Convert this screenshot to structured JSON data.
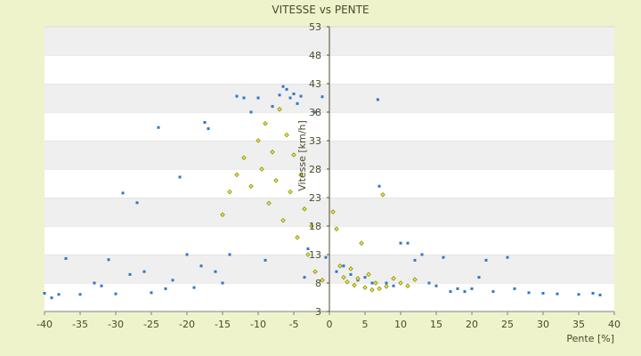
{
  "chart_data": {
    "type": "scatter",
    "title": "VITESSE vs PENTE",
    "xlabel": "Pente [%]",
    "ylabel": "Vitesse [km/h]",
    "xlim": [
      -40,
      40
    ],
    "ylim": [
      3,
      53
    ],
    "x_ticks": [
      "-40",
      "-35",
      "-30",
      "-25",
      "-20",
      "-15",
      "-10",
      "-5",
      "0",
      "5",
      "10",
      "15",
      "20",
      "25",
      "30",
      "35",
      "40"
    ],
    "y_ticks": [
      "3",
      "8",
      "13",
      "18",
      "23",
      "28",
      "33",
      "38",
      "43",
      "48",
      "53"
    ],
    "grid": "horizontal bands",
    "legend": "none",
    "series": [
      {
        "color": "#2e78c8",
        "points": [
          [
            -40,
            6.2
          ],
          [
            -39,
            5.4
          ],
          [
            -38,
            6.0
          ],
          [
            -37,
            12.3
          ],
          [
            -35,
            6.0
          ],
          [
            -33,
            8.0
          ],
          [
            -32,
            7.5
          ],
          [
            -31,
            12.1
          ],
          [
            -30,
            6.1
          ],
          [
            -29,
            23.8
          ],
          [
            -28,
            9.5
          ],
          [
            -27,
            22.1
          ],
          [
            -26,
            10.0
          ],
          [
            -25,
            6.3
          ],
          [
            -24,
            35.3
          ],
          [
            -23,
            7.0
          ],
          [
            -22,
            8.5
          ],
          [
            -21,
            26.6
          ],
          [
            -20,
            13.0
          ],
          [
            -19,
            7.2
          ],
          [
            -18,
            11.0
          ],
          [
            -17.5,
            36.2
          ],
          [
            -17,
            35.1
          ],
          [
            -16,
            10.0
          ],
          [
            -15,
            8.0
          ],
          [
            -14,
            13.0
          ],
          [
            -13,
            40.8
          ],
          [
            -12,
            40.5
          ],
          [
            -11,
            38.0
          ],
          [
            -10,
            40.5
          ],
          [
            -9,
            12.0
          ],
          [
            -8,
            39.0
          ],
          [
            -7,
            41.0
          ],
          [
            -6.5,
            42.5
          ],
          [
            -6,
            42.0
          ],
          [
            -5.5,
            40.5
          ],
          [
            -5,
            41.2
          ],
          [
            -4.5,
            39.5
          ],
          [
            -4,
            40.8
          ],
          [
            -3.5,
            9.0
          ],
          [
            -3,
            14.0
          ],
          [
            -2,
            38.0
          ],
          [
            -1,
            40.7
          ],
          [
            -0.5,
            12.5
          ],
          [
            1,
            10.0
          ],
          [
            2,
            11.0
          ],
          [
            3,
            9.5
          ],
          [
            4,
            8.5
          ],
          [
            5,
            9.0
          ],
          [
            6,
            8.0
          ],
          [
            6.8,
            40.2
          ],
          [
            7,
            25.0
          ],
          [
            8,
            8.0
          ],
          [
            9,
            7.5
          ],
          [
            10,
            15.0
          ],
          [
            11,
            15.0
          ],
          [
            12,
            12.0
          ],
          [
            13,
            13.0
          ],
          [
            14,
            8.0
          ],
          [
            15,
            7.5
          ],
          [
            16,
            12.5
          ],
          [
            17,
            6.5
          ],
          [
            18,
            7.0
          ],
          [
            19,
            6.5
          ],
          [
            20,
            7.0
          ],
          [
            21,
            9.0
          ],
          [
            22,
            12.0
          ],
          [
            23,
            6.5
          ],
          [
            25,
            12.5
          ],
          [
            26,
            7.0
          ],
          [
            28,
            6.3
          ],
          [
            30,
            6.2
          ],
          [
            32,
            6.1
          ],
          [
            35,
            6.0
          ],
          [
            37,
            6.2
          ],
          [
            38,
            5.9
          ]
        ]
      },
      {
        "color": "#8a8a10",
        "points": [
          [
            -15,
            20.0
          ],
          [
            -14,
            24.0
          ],
          [
            -13,
            27.0
          ],
          [
            -12,
            30.0
          ],
          [
            -11,
            25.0
          ],
          [
            -10,
            33.0
          ],
          [
            -9.5,
            28.0
          ],
          [
            -9,
            36.0
          ],
          [
            -8.5,
            22.0
          ],
          [
            -8,
            31.0
          ],
          [
            -7.5,
            26.0
          ],
          [
            -7,
            38.5
          ],
          [
            -6.5,
            19.0
          ],
          [
            -6,
            34.0
          ],
          [
            -5.5,
            24.0
          ],
          [
            -5,
            30.5
          ],
          [
            -4.5,
            16.0
          ],
          [
            -4,
            27.0
          ],
          [
            -3.5,
            21.0
          ],
          [
            -3,
            13.0
          ],
          [
            -2.5,
            18.0
          ],
          [
            -2,
            10.0
          ],
          [
            -1,
            8.5
          ],
          [
            0.5,
            20.5
          ],
          [
            1,
            17.5
          ],
          [
            1.5,
            11.0
          ],
          [
            2,
            9.0
          ],
          [
            2.5,
            8.2
          ],
          [
            3,
            10.5
          ],
          [
            3.5,
            7.6
          ],
          [
            4,
            8.8
          ],
          [
            4.5,
            15.0
          ],
          [
            5,
            7.2
          ],
          [
            5.5,
            9.5
          ],
          [
            6,
            6.8
          ],
          [
            6.5,
            8.0
          ],
          [
            7,
            7.0
          ],
          [
            7.5,
            23.5
          ],
          [
            8,
            7.4
          ],
          [
            9,
            8.8
          ],
          [
            10,
            8.0
          ],
          [
            11,
            7.5
          ],
          [
            12,
            8.6
          ]
        ]
      }
    ]
  }
}
